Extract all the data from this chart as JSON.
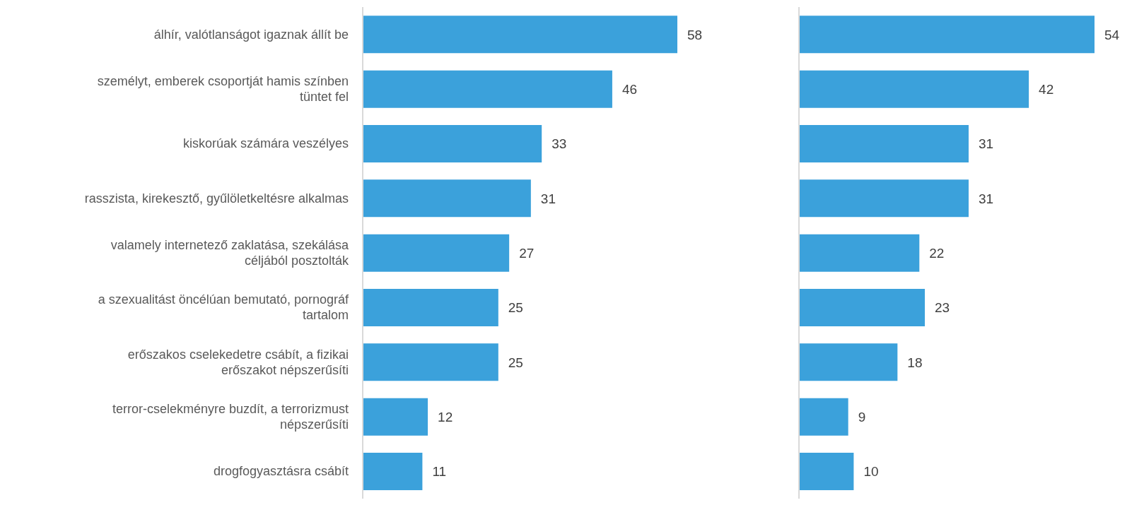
{
  "chart_data": [
    {
      "type": "bar",
      "orientation": "horizontal",
      "categories": [
        "álhír, valótlanságot igaznak állít be",
        "személyt, emberek csoportját hamis színben tüntet fel",
        "kiskorúak számára veszélyes",
        "rasszista, kirekesztő, gyűlöletkeltésre alkalmas",
        "valamely internetező zaklatása, szekálása céljából posztolták",
        "a szexualitást öncélúan bemutató, pornográf tartalom",
        "erőszakos cselekedetre csábít, a fizikai erőszakot népszerűsíti",
        "terror-cselekményre buzdít, a terrorizmust népszerűsíti",
        "drogfogyasztásra csábít"
      ],
      "values": [
        58,
        46,
        33,
        31,
        27,
        25,
        25,
        12,
        11
      ],
      "color": "#3ba1db",
      "data_labels": true,
      "tick_labels": "y",
      "grid": false,
      "legend": false
    },
    {
      "type": "bar",
      "orientation": "horizontal",
      "categories": [
        null,
        null,
        null,
        null,
        null,
        null,
        null,
        null,
        null
      ],
      "values": [
        54,
        42,
        31,
        31,
        22,
        23,
        18,
        9,
        10
      ],
      "color": "#3ba1db",
      "data_labels": true,
      "tick_labels": false,
      "grid": false,
      "legend": false
    }
  ]
}
